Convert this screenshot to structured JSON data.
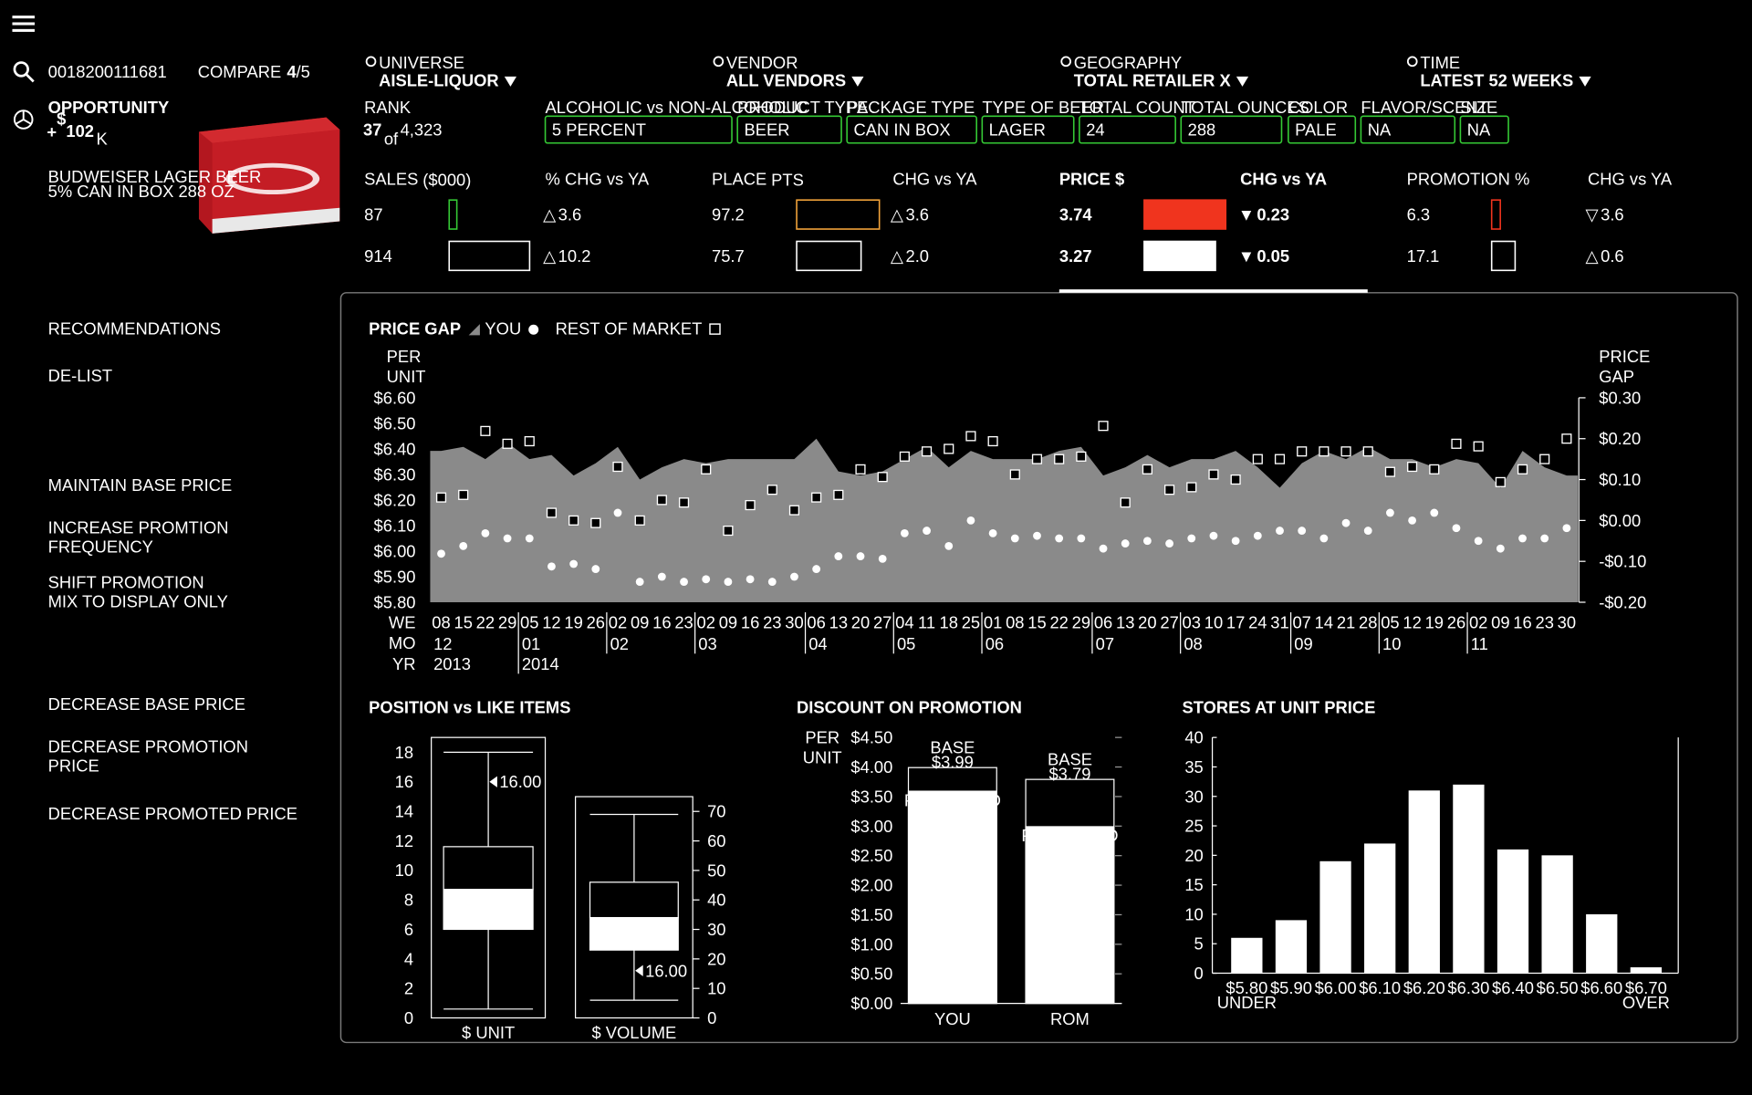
{
  "header": {
    "product_id": "0018200111681",
    "compare": "COMPARE",
    "compare_current": "4",
    "compare_total": "/5",
    "opportunity_label": "OPPORTUNITY",
    "opportunity_sign": "+",
    "opportunity_currency": "$",
    "opportunity_value": "102",
    "opportunity_unit": "K",
    "product_name": [
      "BUDWEISER LAGER BEER",
      "5% CAN IN BOX 288 OZ"
    ]
  },
  "filters": [
    {
      "label": "UNIVERSE",
      "value": "AISLE-LIQUOR"
    },
    {
      "label": "VENDOR",
      "value": "ALL VENDORS"
    },
    {
      "label": "GEOGRAPHY",
      "value": "TOTAL RETAILER X"
    },
    {
      "label": "TIME",
      "value": "LATEST 52 WEEKS"
    }
  ],
  "rank": {
    "label": "RANK",
    "value": 37,
    "of": "of",
    "total": "4,323"
  },
  "attributes": [
    {
      "label": "ALCOHOLIC vs NON-ALCOHOLIC",
      "value": "5 PERCENT"
    },
    {
      "label": "PRODUCT TYPE",
      "value": "BEER"
    },
    {
      "label": "PACKAGE TYPE",
      "value": "CAN IN BOX"
    },
    {
      "label": "TYPE OF BEER",
      "value": "LAGER"
    },
    {
      "label": "TOTAL COUNT",
      "value": "24"
    },
    {
      "label": "TOTAL OUNCES",
      "value": "288"
    },
    {
      "label": "COLOR",
      "value": "PALE"
    },
    {
      "label": "FLAVOR/SCENT",
      "value": "NA"
    },
    {
      "label": "SIZE",
      "value": "NA"
    }
  ],
  "metrics": [
    {
      "label": "SALES",
      "unit": "($000)",
      "values": [
        87,
        914
      ],
      "color": "#35c935",
      "bar": "outline",
      "change_label": "% CHG vs YA",
      "change_color": "#35c935",
      "changes": [
        {
          "symbol": "△",
          "value": "3.6"
        },
        {
          "symbol": "△",
          "value": "10.2"
        }
      ]
    },
    {
      "label": "PLACE",
      "unit": "PTS",
      "values": [
        97.2,
        75.7
      ],
      "color": "#f2a33a",
      "bar": "outline",
      "change_label": "CHG vs YA",
      "change_color": "#35c935",
      "changes": [
        {
          "symbol": "△",
          "value": "3.6"
        },
        {
          "symbol": "△",
          "value": "2.0"
        }
      ]
    },
    {
      "label": "PRICE $",
      "values": [
        3.74,
        3.27
      ],
      "color": "#f0341e",
      "bar": "filled",
      "bold": true,
      "selected": true,
      "change_label": "CHG vs YA",
      "change_color": "#f0341e",
      "changes": [
        {
          "symbol": "▼",
          "value": "0.23"
        },
        {
          "symbol": "▼",
          "value": "0.05"
        }
      ]
    },
    {
      "label": "PROMOTION %",
      "values": [
        6.3,
        17.1
      ],
      "color": "#f0341e",
      "bar": "outline",
      "change_label": "CHG vs YA",
      "change_color": "#f0341e",
      "changes": [
        {
          "symbol": "▽",
          "value": "3.6"
        },
        {
          "symbol": "△",
          "value": "0.6"
        }
      ]
    }
  ],
  "recommendations": {
    "title": "RECOMMENDATIONS",
    "items": [
      [
        "DE-LIST"
      ],
      [
        "MAINTAIN BASE PRICE"
      ],
      [
        "INCREASE PROMTION",
        "FREQUENCY"
      ],
      [
        "SHIFT PROMOTION",
        "MIX TO DISPLAY ONLY"
      ],
      [
        "DECREASE BASE PRICE"
      ],
      [
        "DECREASE PROMOTION",
        "PRICE"
      ],
      [
        "DECREASE PROMOTED PRICE"
      ]
    ]
  },
  "chart_data": [
    {
      "type": "area",
      "y_label": [
        "PER",
        "UNIT"
      ],
      "y2_label": [
        "PRICE",
        "GAP"
      ],
      "x_row_labels": [
        "WE",
        "MO",
        "YR"
      ],
      "weeks": [
        "08",
        "15",
        "22",
        "29",
        "05",
        "12",
        "19",
        "26",
        "02",
        "09",
        "16",
        "23",
        "02",
        "09",
        "16",
        "23",
        "30",
        "06",
        "13",
        "20",
        "27",
        "04",
        "11",
        "18",
        "25",
        "01",
        "08",
        "15",
        "22",
        "29",
        "06",
        "13",
        "20",
        "27",
        "03",
        "10",
        "17",
        "24",
        "31",
        "07",
        "14",
        "21",
        "28",
        "05",
        "12",
        "19",
        "26",
        "02",
        "09",
        "16",
        "23",
        "30"
      ],
      "months": [
        "12",
        null,
        null,
        null,
        "01",
        null,
        null,
        null,
        "02",
        null,
        null,
        null,
        "03",
        null,
        null,
        null,
        null,
        "04",
        null,
        null,
        null,
        "05",
        null,
        null,
        null,
        "06",
        null,
        null,
        null,
        null,
        "07",
        null,
        null,
        null,
        "08",
        null,
        null,
        null,
        null,
        "09",
        null,
        null,
        null,
        "10",
        null,
        null,
        null,
        "11",
        null,
        null,
        null,
        null
      ],
      "years": [
        "2013",
        null,
        null,
        null,
        "2014",
        null,
        null,
        null,
        null,
        null,
        null,
        null,
        null,
        null,
        null,
        null,
        null,
        null,
        null,
        null,
        null,
        null,
        null,
        null,
        null,
        null,
        null,
        null,
        null,
        null,
        null,
        null,
        null,
        null,
        null,
        null,
        null,
        null,
        null,
        null,
        null,
        null,
        null,
        null,
        null,
        null,
        null,
        null,
        null,
        null,
        null,
        null
      ],
      "ylim": [
        5.8,
        6.6
      ],
      "yticks": [
        {
          "value": 5.8,
          "label": "$5.80"
        },
        {
          "value": 5.9,
          "label": "$5.90"
        },
        {
          "value": 6.0,
          "label": "$6.00"
        },
        {
          "value": 6.1,
          "label": "$6.10"
        },
        {
          "value": 6.2,
          "label": "$6.20"
        },
        {
          "value": 6.3,
          "label": "$6.30"
        },
        {
          "value": 6.4,
          "label": "$6.40"
        },
        {
          "value": 6.5,
          "label": "$6.50"
        },
        {
          "value": 6.6,
          "label": "$6.60"
        }
      ],
      "y2lim": [
        -0.2,
        0.3
      ],
      "y2ticks": [
        {
          "value": -0.2,
          "label": "-$0.20"
        },
        {
          "value": -0.1,
          "label": "-$0.10"
        },
        {
          "value": 0,
          "label": "$0.00"
        },
        {
          "value": 0.1,
          "label": "$0.10"
        },
        {
          "value": 0.2,
          "label": "$0.20"
        },
        {
          "value": 0.3,
          "label": "$0.30"
        }
      ],
      "series": [
        {
          "name": "PRICE GAP",
          "color": "#8a8a8a",
          "axis": "y2",
          "style": "area",
          "values": [
            0.17,
            0.18,
            0.15,
            0.19,
            0.15,
            0.16,
            0.11,
            0.14,
            0.18,
            0.1,
            0.13,
            0.15,
            0.14,
            0.15,
            0.15,
            0.15,
            0.15,
            0.2,
            0.12,
            0.11,
            0.12,
            0.15,
            0.18,
            0.13,
            0.17,
            0.15,
            0.15,
            0.15,
            0.17,
            0.18,
            0.11,
            0.13,
            0.16,
            0.13,
            0.15,
            0.15,
            0.17,
            0.13,
            0.08,
            0.14,
            0.17,
            0.15,
            0.18,
            0.15,
            0.15,
            0.13,
            0.15,
            0.14,
            0.08,
            0.17,
            0.13,
            0.11
          ]
        },
        {
          "name": "YOU",
          "color": "#ffffff",
          "marker": "circle",
          "values": [
            5.99,
            6.02,
            6.07,
            6.05,
            6.05,
            5.94,
            5.95,
            5.93,
            6.15,
            5.88,
            5.9,
            5.88,
            5.89,
            5.88,
            5.89,
            5.88,
            5.9,
            5.93,
            5.98,
            5.98,
            5.97,
            6.07,
            6.08,
            6.02,
            6.12,
            6.07,
            6.05,
            6.06,
            6.05,
            6.05,
            6.01,
            6.03,
            6.04,
            6.03,
            6.05,
            6.06,
            6.04,
            6.06,
            6.08,
            6.08,
            6.05,
            6.11,
            6.08,
            6.15,
            6.12,
            6.15,
            6.09,
            6.04,
            6.01,
            6.05,
            6.05,
            6.09
          ]
        },
        {
          "name": "REST OF MARKET",
          "color": "#ffffff",
          "marker": "square",
          "values": [
            6.21,
            6.22,
            6.47,
            6.42,
            6.43,
            6.15,
            6.12,
            6.11,
            6.33,
            6.12,
            6.2,
            6.19,
            6.32,
            6.08,
            6.18,
            6.24,
            6.16,
            6.21,
            6.22,
            6.32,
            6.29,
            6.37,
            6.39,
            6.4,
            6.45,
            6.43,
            6.3,
            6.36,
            6.36,
            6.37,
            6.49,
            6.19,
            6.32,
            6.24,
            6.25,
            6.3,
            6.28,
            6.36,
            6.36,
            6.39,
            6.39,
            6.39,
            6.39,
            6.31,
            6.33,
            6.32,
            6.42,
            6.41,
            6.27,
            6.32,
            6.36,
            6.44
          ]
        }
      ]
    },
    {
      "type": "box",
      "title": "POSITION vs LIKE ITEMS",
      "boxes": [
        {
          "name": "$ UNIT",
          "min": 0.6,
          "q1": 6,
          "median": 8.7,
          "q3": 11.6,
          "max": 18,
          "marker": 16,
          "marker_label": "16.00",
          "axis_side": "left",
          "ylim": [
            0,
            19
          ],
          "yticks": [
            0,
            2,
            4,
            6,
            8,
            10,
            12,
            14,
            16,
            18
          ]
        },
        {
          "name": "$ VOLUME",
          "min": 6,
          "q1": 23,
          "median": 34,
          "q3": 46,
          "max": 69,
          "marker": 16,
          "marker_label": "16.00",
          "axis_side": "right",
          "ylim": [
            0,
            75
          ],
          "yticks": [
            0,
            10,
            20,
            30,
            40,
            50,
            60,
            70
          ]
        }
      ]
    },
    {
      "type": "bar",
      "title": "DISCOUNT ON PROMOTION",
      "y_label": [
        "PER",
        "UNIT"
      ],
      "overlap": true,
      "categories": [
        "YOU",
        "ROM"
      ],
      "ylim": [
        0,
        4.5
      ],
      "yticks": [
        {
          "value": 0,
          "label": "$0.00"
        },
        {
          "value": 0.5,
          "label": "$0.50"
        },
        {
          "value": 1,
          "label": "$1.00"
        },
        {
          "value": 1.5,
          "label": "$1.50"
        },
        {
          "value": 2,
          "label": "$2.00"
        },
        {
          "value": 2.5,
          "label": "$2.50"
        },
        {
          "value": 3,
          "label": "$3.00"
        },
        {
          "value": 3.5,
          "label": "$3.50"
        },
        {
          "value": 4,
          "label": "$4.00"
        },
        {
          "value": 4.5,
          "label": "$4.50"
        }
      ],
      "series": [
        {
          "name": "BASE",
          "color": "#000000",
          "values": [
            3.99,
            3.79
          ],
          "value_labels": [
            "$3.99",
            "$3.79"
          ]
        },
        {
          "name": "PROMOTED",
          "color": "#ffffff",
          "values": [
            3.59,
            2.99
          ],
          "value_labels": [
            "$3.59",
            "$2.99"
          ]
        }
      ]
    },
    {
      "type": "bar",
      "title": "STORES AT UNIT PRICE",
      "color": "#ffffff",
      "categories": [
        "$5.80",
        "$5.90",
        "$6.00",
        "$6.10",
        "$6.20",
        "$6.30",
        "$6.40",
        "$6.50",
        "$6.60",
        "$6.70"
      ],
      "first_note": "UNDER",
      "last_note": "OVER",
      "values": [
        6,
        9,
        19,
        22,
        31,
        32,
        21,
        20,
        10,
        1
      ],
      "ylim": [
        0,
        40
      ],
      "yticks": [
        0,
        5,
        10,
        15,
        20,
        25,
        30,
        35,
        40
      ]
    }
  ]
}
